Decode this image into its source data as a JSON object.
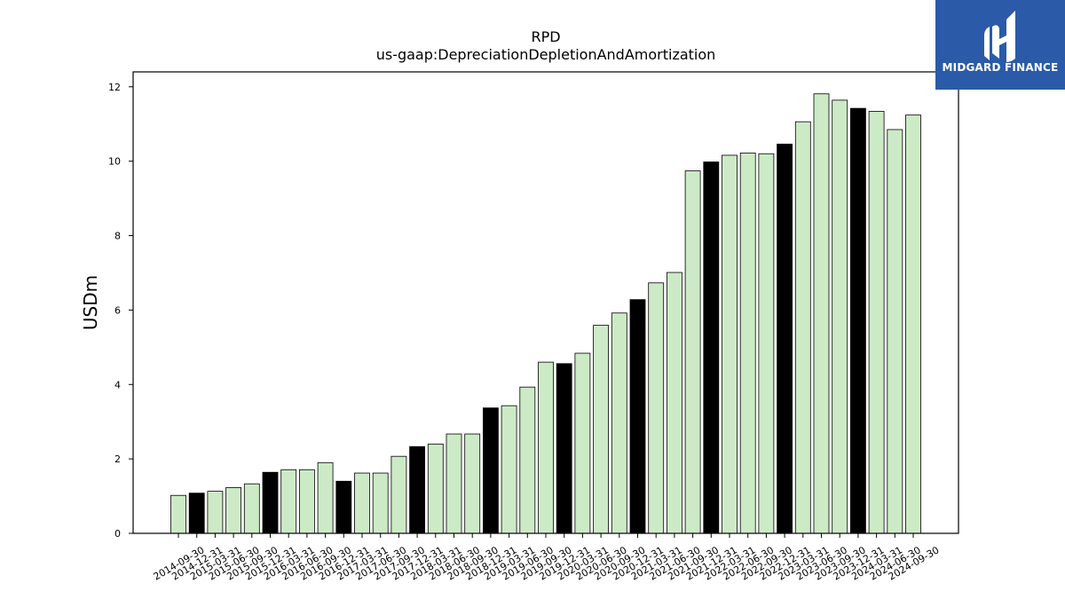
{
  "chart_data": {
    "type": "bar",
    "title": "RPD",
    "subtitle": "us-gaap:DepreciationDepletionAndAmortization",
    "ylabel": "USDm",
    "xlabel": "",
    "ylim": [
      0,
      12.4
    ],
    "yticks": [
      0,
      2,
      4,
      6,
      8,
      10,
      12
    ],
    "grid": false,
    "categories": [
      "2014-09-30",
      "2014-12-31",
      "2015-03-31",
      "2015-06-30",
      "2015-09-30",
      "2015-12-31",
      "2016-03-31",
      "2016-06-30",
      "2016-09-30",
      "2016-12-31",
      "2017-03-31",
      "2017-06-30",
      "2017-09-30",
      "2017-12-31",
      "2018-03-31",
      "2018-06-30",
      "2018-09-30",
      "2018-12-31",
      "2019-03-31",
      "2019-06-30",
      "2019-09-30",
      "2019-12-31",
      "2020-03-31",
      "2020-06-30",
      "2020-09-30",
      "2020-12-31",
      "2021-03-31",
      "2021-06-30",
      "2021-09-30",
      "2021-12-31",
      "2022-03-31",
      "2022-06-30",
      "2022-09-30",
      "2022-12-31",
      "2023-03-31",
      "2023-06-30",
      "2023-09-30",
      "2023-12-31",
      "2024-03-31",
      "2024-06-30",
      "2024-09-30"
    ],
    "values": [
      1.02,
      1.08,
      1.13,
      1.23,
      1.33,
      1.64,
      1.71,
      1.71,
      1.9,
      1.4,
      1.62,
      1.62,
      2.07,
      2.33,
      2.4,
      2.67,
      2.67,
      3.37,
      3.43,
      3.93,
      4.6,
      4.56,
      4.84,
      5.59,
      5.92,
      6.28,
      6.73,
      7.01,
      9.74,
      9.98,
      10.16,
      10.22,
      10.2,
      10.46,
      11.06,
      11.81,
      11.64,
      11.42,
      11.34,
      10.85,
      11.24
    ],
    "highlight": [
      false,
      true,
      false,
      false,
      false,
      true,
      false,
      false,
      false,
      true,
      false,
      false,
      false,
      true,
      false,
      false,
      false,
      true,
      false,
      false,
      false,
      true,
      false,
      false,
      false,
      true,
      false,
      false,
      false,
      true,
      false,
      false,
      false,
      true,
      false,
      false,
      false,
      true,
      false,
      false,
      false
    ],
    "colors": {
      "bar": "#cdeac6",
      "highlight": "#000000",
      "edge": "#000000",
      "axis": "#000000"
    }
  },
  "logo": {
    "text": "MIDGARD FINANCE",
    "background": "#2b5aa8",
    "icon": "midgard-logo-icon"
  }
}
